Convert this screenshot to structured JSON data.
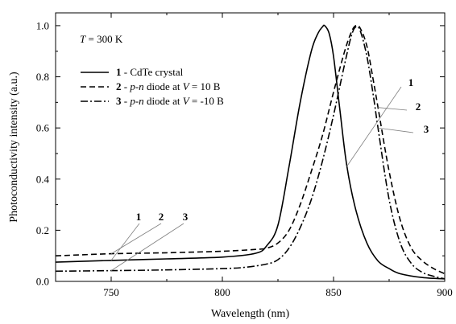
{
  "chart_data": {
    "type": "line",
    "xlabel": "Wavelength (nm)",
    "ylabel": "Photoconductivity intensity (a.u.)",
    "xlim": [
      725,
      900
    ],
    "ylim": [
      0,
      1.05
    ],
    "x_ticks": [
      750,
      800,
      850,
      900
    ],
    "x_tick_labels": [
      "750",
      "800",
      "850",
      "900"
    ],
    "y_ticks": [
      0.0,
      0.2,
      0.4,
      0.6,
      0.8,
      1.0
    ],
    "y_tick_labels": [
      "0.0",
      "0.2",
      "0.4",
      "0.6",
      "0.8",
      "1.0"
    ],
    "grid": false,
    "legend_position": "upper-left",
    "annotation": {
      "temperature_prefix": "T",
      "temperature_rest": " = 300 K"
    },
    "legend": [
      {
        "num": "1",
        "pre": " - CdTe crystal",
        "ital1": "",
        "mid": "",
        "ital2": "",
        "post": "",
        "dash": "solid"
      },
      {
        "num": "2",
        "pre": " - ",
        "ital1": "p-n",
        "mid": " diode at  ",
        "ital2": "V",
        "post": " = 10 B",
        "dash": "dashed"
      },
      {
        "num": "3",
        "pre": " - ",
        "ital1": "p-n",
        "mid": " diode at  ",
        "ital2": "V",
        "post": " = -10 B",
        "dash": "dashdot"
      }
    ],
    "curve_labels": [
      "1",
      "2",
      "3"
    ],
    "series": [
      {
        "name": "1 - CdTe crystal",
        "dash": "solid",
        "x": [
          725,
          750,
          775,
          800,
          815,
          820,
          825,
          830,
          835,
          840,
          843,
          845,
          846,
          848,
          850,
          853,
          856,
          860,
          865,
          870,
          875,
          880,
          890,
          900
        ],
        "y": [
          0.075,
          0.082,
          0.088,
          0.095,
          0.11,
          0.14,
          0.22,
          0.45,
          0.7,
          0.9,
          0.97,
          0.995,
          1.0,
          0.97,
          0.88,
          0.66,
          0.45,
          0.28,
          0.15,
          0.08,
          0.05,
          0.03,
          0.015,
          0.01
        ]
      },
      {
        "name": "2 - p-n diode at V = 10 B",
        "dash": "dashed",
        "x": [
          725,
          750,
          775,
          800,
          815,
          820,
          825,
          830,
          835,
          840,
          845,
          850,
          855,
          858,
          860,
          862,
          865,
          868,
          870,
          875,
          880,
          885,
          890,
          895,
          900
        ],
        "y": [
          0.1,
          0.108,
          0.112,
          0.118,
          0.125,
          0.13,
          0.15,
          0.2,
          0.3,
          0.43,
          0.57,
          0.74,
          0.9,
          0.975,
          1.0,
          0.99,
          0.92,
          0.78,
          0.68,
          0.43,
          0.24,
          0.13,
          0.08,
          0.05,
          0.03
        ]
      },
      {
        "name": "3 - p-n diode at V = -10 B",
        "dash": "dashdot",
        "x": [
          725,
          750,
          775,
          800,
          810,
          820,
          825,
          830,
          835,
          840,
          845,
          850,
          855,
          858,
          860,
          862,
          865,
          868,
          870,
          875,
          880,
          885,
          890,
          895,
          900
        ],
        "y": [
          0.04,
          0.042,
          0.045,
          0.05,
          0.055,
          0.068,
          0.085,
          0.13,
          0.21,
          0.32,
          0.47,
          0.65,
          0.85,
          0.96,
          0.995,
          0.98,
          0.88,
          0.72,
          0.6,
          0.32,
          0.15,
          0.07,
          0.035,
          0.02,
          0.01
        ]
      }
    ]
  }
}
